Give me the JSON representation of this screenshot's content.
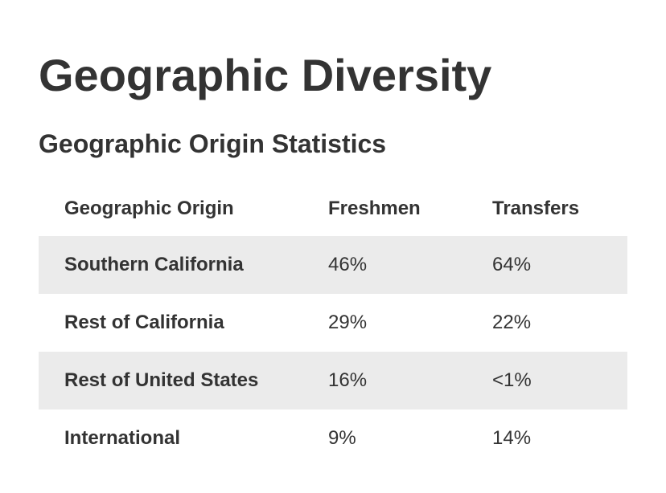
{
  "page": {
    "title": "Geographic Diversity",
    "subtitle": "Geographic Origin Statistics"
  },
  "table": {
    "headers": [
      "Geographic Origin",
      "Freshmen",
      "Transfers"
    ],
    "rows": [
      {
        "origin": "Southern California",
        "freshmen": "46%",
        "transfers": "64%"
      },
      {
        "origin": "Rest of California",
        "freshmen": "29%",
        "transfers": "22%"
      },
      {
        "origin": "Rest of United States",
        "freshmen": "16%",
        "transfers": "<1%"
      },
      {
        "origin": "International",
        "freshmen": "9%",
        "transfers": "14%"
      }
    ],
    "stripe_color": "#ebebeb",
    "text_color": "#333333"
  }
}
